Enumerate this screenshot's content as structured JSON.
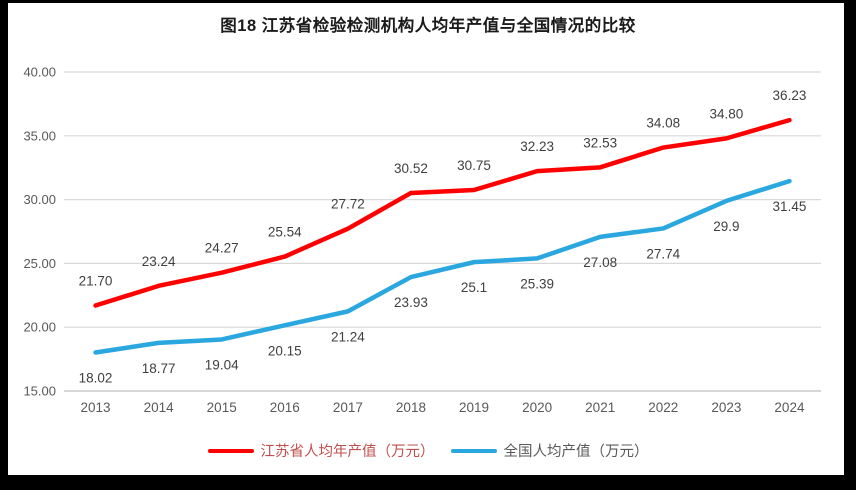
{
  "title": "图18  江苏省检验检测机构人均年产值与全国情况的比较",
  "chart_data": {
    "type": "line",
    "title": "图18  江苏省检验检测机构人均年产值与全国情况的比较",
    "categories": [
      "2013",
      "2014",
      "2015",
      "2016",
      "2017",
      "2018",
      "2019",
      "2020",
      "2021",
      "2022",
      "2023",
      "2024"
    ],
    "series": [
      {
        "name": "江苏省人均年产值（万元）",
        "color": "#FF0000",
        "label_position": "above",
        "values": [
          21.7,
          23.24,
          24.27,
          25.54,
          27.72,
          30.52,
          30.75,
          32.23,
          32.53,
          34.08,
          34.8,
          36.23
        ],
        "labels": [
          "21.70",
          "23.24",
          "24.27",
          "25.54",
          "27.72",
          "30.52",
          "30.75",
          "32.23",
          "32.53",
          "34.08",
          "34.80",
          "36.23"
        ]
      },
      {
        "name": "全国人均产值（万元）",
        "color": "#2BA7DF",
        "label_position": "below",
        "values": [
          18.02,
          18.77,
          19.04,
          20.15,
          21.24,
          23.93,
          25.1,
          25.39,
          27.08,
          27.74,
          29.9,
          31.45
        ],
        "labels": [
          "18.02",
          "18.77",
          "19.04",
          "20.15",
          "21.24",
          "23.93",
          "25.1",
          "25.39",
          "27.08",
          "27.74",
          "29.9",
          "31.45"
        ]
      }
    ],
    "ylim": [
      15,
      40
    ],
    "yticks": [
      {
        "value": 15,
        "label": "15.00"
      },
      {
        "value": 20,
        "label": "20.00"
      },
      {
        "value": 25,
        "label": "25.00"
      },
      {
        "value": 30,
        "label": "30.00"
      },
      {
        "value": 35,
        "label": "35.00"
      },
      {
        "value": 40,
        "label": "40.00"
      }
    ],
    "grid": true,
    "legend_position": "bottom"
  },
  "colors": {
    "jiangsu_line": "#FF0000",
    "national_line": "#2BA7DF",
    "gridline": "#D9D9D9",
    "axis_line": "#BFBFBF",
    "axis_text": "#595959",
    "data_label": "#3F3F3F",
    "legend_text_jiangsu": "#C0504D",
    "legend_text_national": "#595959",
    "frame": "#000000",
    "page_background": "#FFFFFF"
  }
}
